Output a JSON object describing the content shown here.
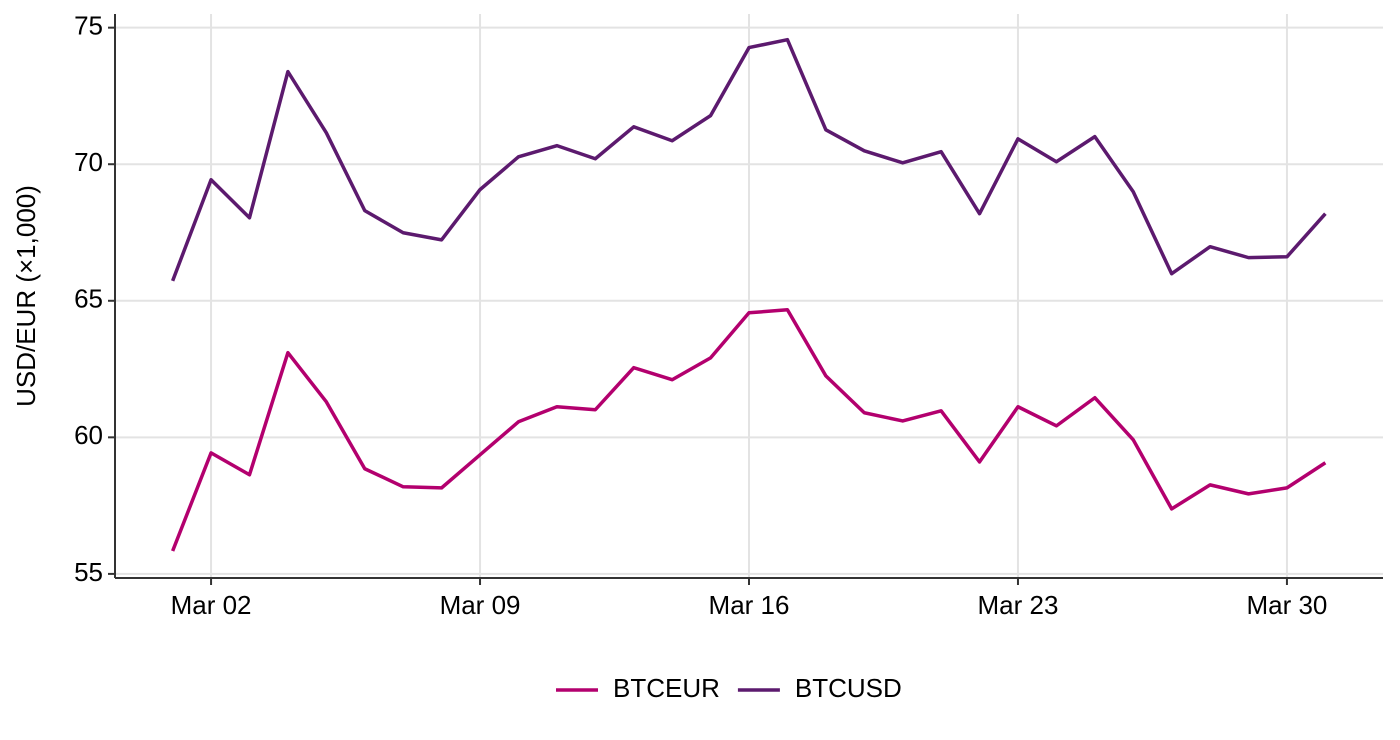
{
  "chart_data": {
    "type": "line",
    "y_label": "USD/EUR (×1,000)",
    "x": [
      1,
      2,
      3,
      4,
      5,
      6,
      7,
      8,
      9,
      10,
      11,
      12,
      13,
      14,
      15,
      16,
      17,
      18,
      19,
      20,
      21,
      22,
      23,
      24,
      25,
      26,
      27,
      28,
      29,
      30,
      31
    ],
    "xlim": [
      -0.5,
      32.5
    ],
    "xticks": [
      {
        "value": 2,
        "label": "Mar 02"
      },
      {
        "value": 9,
        "label": "Mar 09"
      },
      {
        "value": 16,
        "label": "Mar 16"
      },
      {
        "value": 23,
        "label": "Mar 23"
      },
      {
        "value": 30,
        "label": "Mar 30"
      }
    ],
    "ylim": [
      54.85,
      75.5
    ],
    "yticks": [
      55,
      60,
      65,
      70,
      75
    ],
    "grid": true,
    "legend": "bottom",
    "series": [
      {
        "name": "BTCEUR",
        "color": "#b3006e",
        "values": [
          55.84,
          59.43,
          58.63,
          63.1,
          61.3,
          58.85,
          58.19,
          58.15,
          59.36,
          60.57,
          61.12,
          61.01,
          62.55,
          62.11,
          62.91,
          64.56,
          64.67,
          62.25,
          60.9,
          60.6,
          60.97,
          59.1,
          61.12,
          60.42,
          61.45,
          59.91,
          57.38,
          58.26,
          57.93,
          58.15,
          59.07
        ]
      },
      {
        "name": "BTCUSD",
        "color": "#5c1a6e",
        "values": [
          65.73,
          69.43,
          68.04,
          73.39,
          71.15,
          68.3,
          67.49,
          67.23,
          69.07,
          70.27,
          70.68,
          70.2,
          71.37,
          70.86,
          71.78,
          74.27,
          74.56,
          71.26,
          70.49,
          70.05,
          70.46,
          68.19,
          70.93,
          70.09,
          71.01,
          68.99,
          65.99,
          66.98,
          66.58,
          66.61,
          68.19
        ]
      }
    ]
  }
}
